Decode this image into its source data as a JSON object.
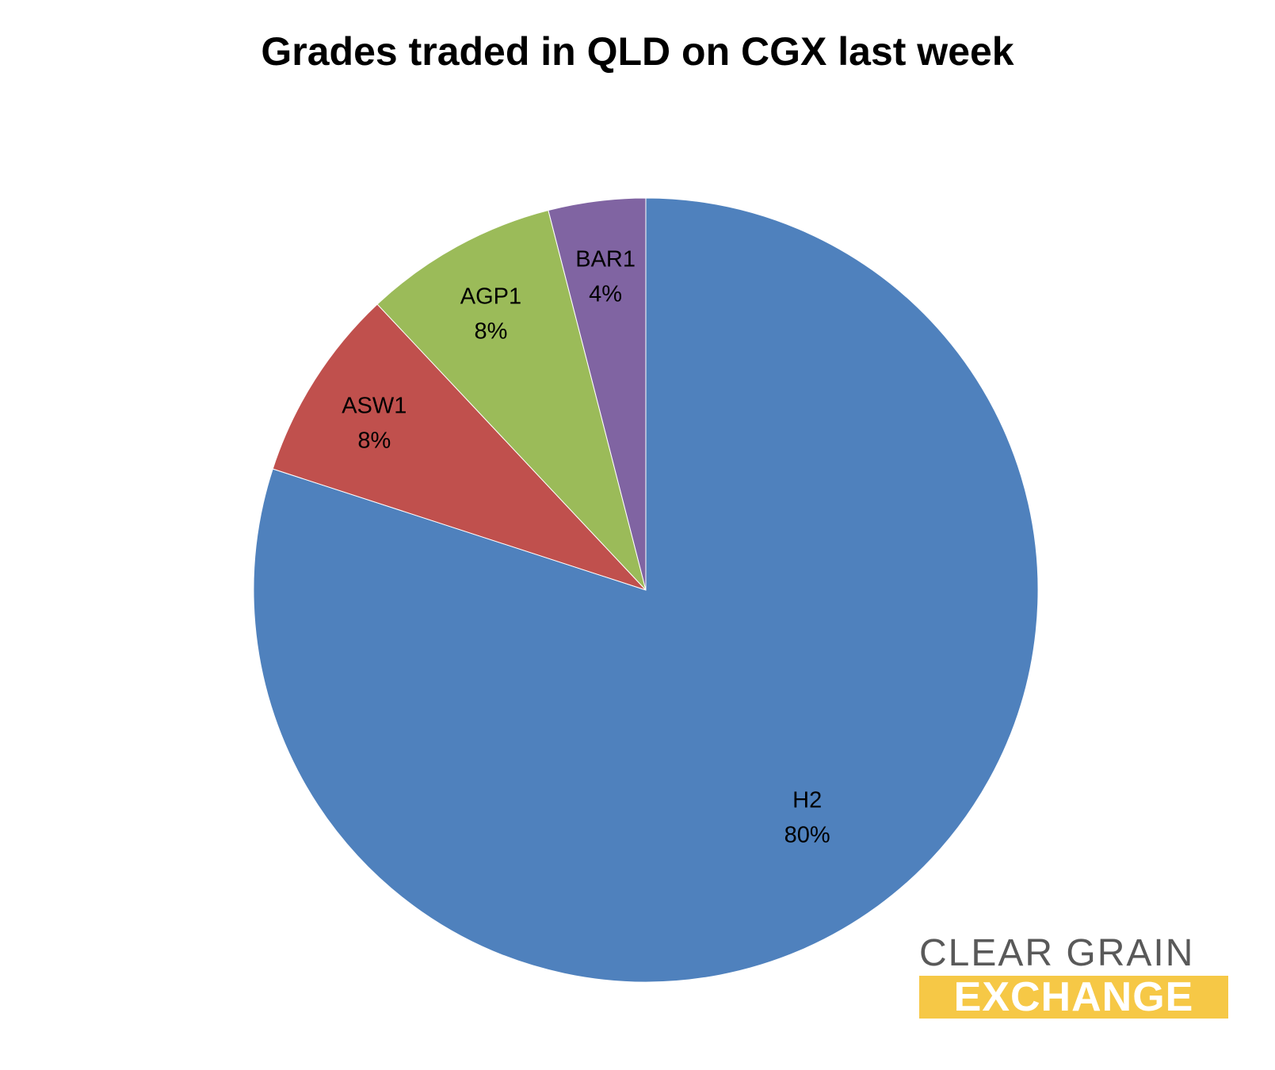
{
  "chart_data": {
    "type": "pie",
    "title": "Grades traded in QLD on CGX last week",
    "start_angle_deg": 0,
    "direction": "clockwise",
    "slices": [
      {
        "label": "H2",
        "value": 80,
        "value_label": "80%",
        "color": "#4f81bd"
      },
      {
        "label": "ASW1",
        "value": 8,
        "value_label": "8%",
        "color": "#c0504d"
      },
      {
        "label": "AGP1",
        "value": 8,
        "value_label": "8%",
        "color": "#9bbb59"
      },
      {
        "label": "BAR1",
        "value": 4,
        "value_label": "4%",
        "color": "#8064a2"
      }
    ]
  },
  "logo": {
    "line1": "CLEAR GRAIN",
    "line2": "EXCHANGE"
  }
}
